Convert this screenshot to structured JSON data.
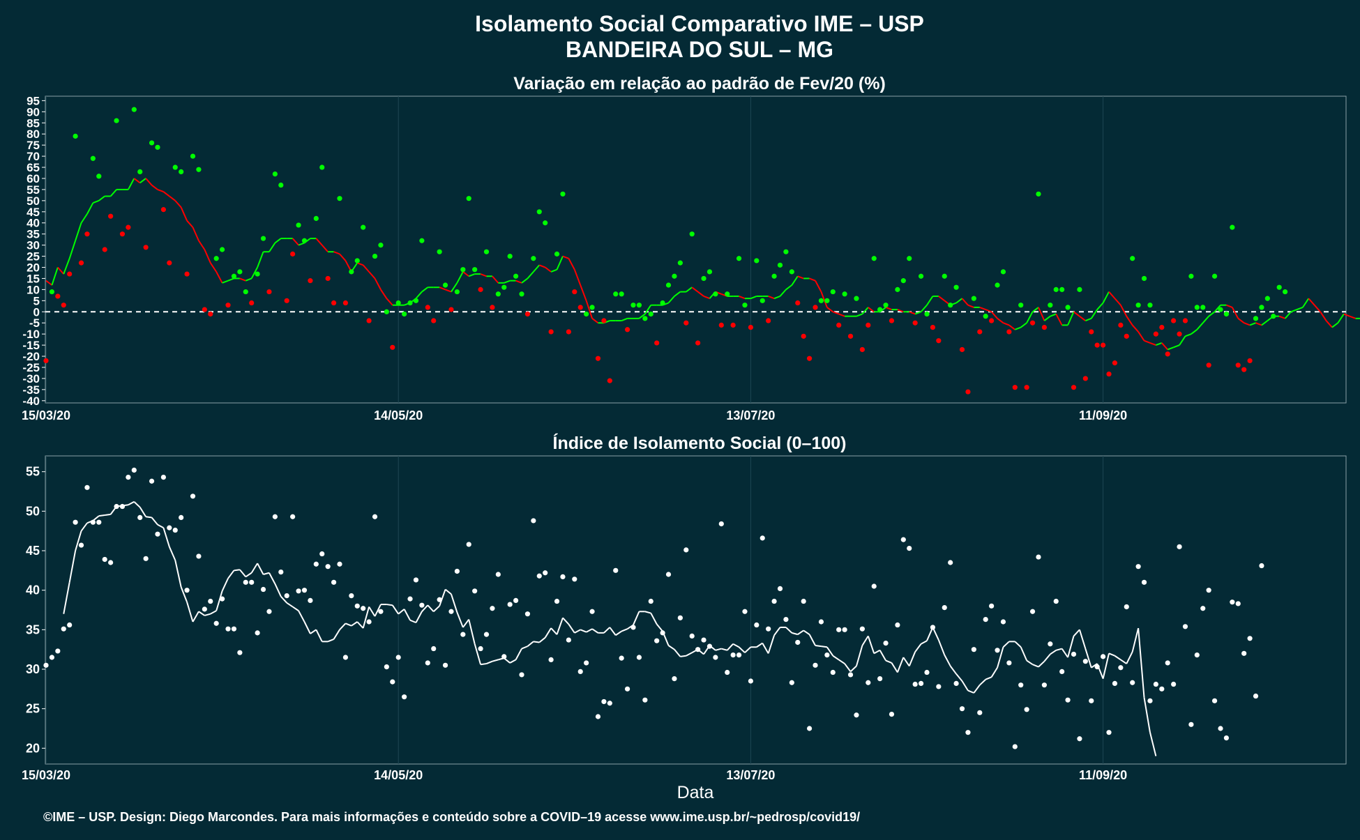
{
  "title_line1": "Isolamento Social Comparativo IME – USP",
  "title_line2": "BANDEIRA DO SUL – MG",
  "xlabel": "Data",
  "footer": "©IME – USP. Design: Diego Marcondes. Para mais informações e conteúdo sobre a COVID–19 acesse www.ime.usp.br/~pedrosp/covid19/",
  "colors": {
    "background": "#042a35",
    "panel": "#042a35",
    "grid": "#1e4753",
    "green": "#00ff00",
    "red": "#ff0000",
    "white": "#ffffff"
  },
  "chart_data": [
    {
      "type": "scatter",
      "title": "Variação em relação ao padrão de Fev/20 (%)",
      "xlabel": "",
      "ylabel": "",
      "x_tick_labels": [
        "15/03/20",
        "14/05/20",
        "13/07/20",
        "11/09/20"
      ],
      "ylim": [
        -41,
        97
      ],
      "yticks": [
        -40,
        -35,
        -30,
        -25,
        -20,
        -15,
        -10,
        -5,
        0,
        5,
        10,
        15,
        20,
        25,
        30,
        35,
        40,
        45,
        50,
        55,
        60,
        65,
        70,
        75,
        80,
        85,
        90,
        95
      ],
      "reference_line": 0,
      "points_note": "day index 0 = 15/03/20",
      "series": [
        {
          "kind": "daily",
          "values": [
            -22,
            9,
            7,
            3,
            17,
            79,
            22,
            35,
            69,
            61,
            28,
            43,
            86,
            35,
            38,
            91,
            63,
            29,
            76,
            74,
            46,
            22,
            65,
            63,
            17,
            70,
            64,
            1,
            -1,
            24,
            28,
            3,
            16,
            18,
            9,
            4,
            17,
            33,
            9,
            62,
            57,
            5,
            26,
            39,
            32,
            14,
            42,
            65,
            15,
            4,
            51,
            4,
            18,
            23,
            38,
            -4,
            25,
            30,
            0,
            -16,
            4,
            -1,
            4,
            5,
            32,
            2,
            -4,
            27,
            12,
            1,
            9,
            19,
            51,
            19,
            10,
            27,
            2,
            8,
            11,
            25,
            16,
            8,
            -1,
            24,
            45,
            40,
            -9,
            26,
            53,
            -9,
            9,
            2,
            -1,
            2,
            -21,
            -4,
            -31,
            8,
            8,
            -8,
            3,
            3,
            -3,
            -1,
            -14,
            4,
            12,
            16,
            22,
            -5,
            35,
            -14,
            15,
            18,
            8,
            -6,
            8,
            -6,
            24,
            3,
            -7,
            23,
            5,
            -4,
            16,
            21,
            27,
            18,
            4,
            -11,
            -21,
            2,
            5,
            5,
            9,
            -6,
            8,
            -11,
            6,
            -17,
            -6,
            24,
            1,
            3,
            -4,
            10,
            14,
            24,
            -5,
            16,
            -1,
            -7,
            -13,
            16,
            3,
            11,
            -17,
            -36,
            6,
            -9,
            -2,
            -4,
            12,
            18,
            -9,
            -34,
            3,
            -34,
            -5,
            53,
            -7,
            3,
            10,
            10,
            2,
            -34,
            10,
            -30,
            -9,
            -15,
            -15,
            -28,
            -23,
            -6,
            -11,
            24,
            3,
            15,
            3,
            -10,
            -7,
            -19,
            -4,
            -10,
            -4,
            16,
            2,
            2,
            -24,
            16,
            1,
            -1,
            38,
            -24,
            -26,
            -22,
            -3,
            2,
            6,
            -2,
            11,
            9
          ],
          "labels_shown_as_marks": true
        },
        {
          "kind": "moving_average",
          "start": 0,
          "values": [
            14,
            12,
            20,
            17,
            24,
            32,
            40,
            44,
            49,
            50,
            52,
            52,
            55,
            55,
            55,
            60,
            58,
            60,
            57,
            55,
            54,
            52,
            50,
            47,
            41,
            38,
            32,
            28,
            22,
            18,
            13,
            14,
            15,
            15,
            14,
            15,
            20,
            27,
            27,
            31,
            33,
            33,
            33,
            30,
            31,
            33,
            33,
            30,
            27,
            27,
            26,
            23,
            18,
            22,
            21,
            18,
            15,
            10,
            6,
            3,
            3,
            3,
            4,
            6,
            9,
            11,
            11,
            11,
            10,
            9,
            13,
            18,
            16,
            17,
            17,
            16,
            16,
            13,
            13,
            14,
            14,
            13,
            15,
            18,
            21,
            20,
            18,
            19,
            25,
            24,
            19,
            12,
            5,
            -3,
            -5,
            -5,
            -4,
            -4,
            -4,
            -3,
            -3,
            -3,
            -1,
            3,
            3,
            3,
            4,
            7,
            9,
            9,
            11,
            9,
            7,
            6,
            9,
            8,
            7,
            7,
            7,
            6,
            6,
            7,
            7,
            7,
            6,
            7,
            10,
            12,
            16,
            15,
            15,
            14,
            9,
            2,
            0,
            -1,
            -2,
            -2,
            -2,
            -1,
            2,
            0,
            0,
            2,
            1,
            1,
            0,
            0,
            -1,
            0,
            3,
            7,
            7,
            5,
            3,
            4,
            6,
            3,
            2,
            2,
            1,
            0,
            -3,
            -5,
            -6,
            -8,
            -7,
            -5,
            0,
            2,
            -4,
            -2,
            -1,
            -6,
            -6,
            0,
            -2,
            -4,
            -3,
            1,
            4,
            9,
            6,
            3,
            -2,
            -6,
            -9,
            -13,
            -14,
            -15,
            -14,
            -17,
            -16,
            -15,
            -11,
            -10,
            -8,
            -5,
            -2,
            0,
            3,
            3,
            2,
            -3,
            -5,
            -6,
            -5,
            -6,
            -4,
            -2,
            -2,
            -3,
            0,
            1,
            2,
            6,
            3,
            0,
            -4,
            -7,
            -5,
            -1,
            -2,
            -3,
            -3,
            2,
            6
          ]
        }
      ]
    },
    {
      "type": "scatter",
      "title": "Índice de Isolamento Social (0–100)",
      "xlabel": "Data",
      "ylabel": "",
      "x_tick_labels": [
        "15/03/20",
        "14/05/20",
        "13/07/20",
        "11/09/20"
      ],
      "ylim": [
        18,
        57
      ],
      "yticks": [
        20,
        25,
        30,
        35,
        40,
        45,
        50,
        55
      ],
      "series": [
        {
          "kind": "daily",
          "values": [
            30.5,
            31.5,
            32.3,
            35.1,
            35.6,
            48.6,
            45.7,
            53,
            48.6,
            48.6,
            43.9,
            43.5,
            50.6,
            50.6,
            54.3,
            55.2,
            49.2,
            44,
            53.8,
            47.1,
            54.3,
            47.9,
            47.6,
            49.2,
            40,
            51.9,
            44.3,
            37.6,
            38.6,
            35.8,
            38.9,
            35.1,
            35.1,
            32.1,
            41,
            41,
            34.6,
            40.1,
            37.3,
            49.3,
            42.3,
            39.3,
            49.3,
            39.9,
            40,
            38.7,
            43.3,
            44.6,
            43,
            41,
            43.3,
            31.5,
            39.3,
            38,
            37.7,
            36,
            49.3,
            37.3,
            30.3,
            28.4,
            31.5,
            26.5,
            38.9,
            41.3,
            38.1,
            30.8,
            32.6,
            38.8,
            30.5,
            37.3,
            42.4,
            34.4,
            45.8,
            39.9,
            32.6,
            34.4,
            37.7,
            42,
            31.6,
            38.2,
            38.7,
            29.3,
            37,
            48.8,
            41.8,
            42.2,
            31.2,
            38.6,
            41.7,
            33.7,
            41.4,
            29.7,
            30.8,
            37.3,
            24,
            25.9,
            25.7,
            42.5,
            31.4,
            27.5,
            35.3,
            31.5,
            26.1,
            38.6,
            33.6,
            34.6,
            42,
            28.8,
            36.5,
            45.1,
            34.2,
            32.5,
            33.7,
            32.9,
            31.5,
            48.4,
            29.6,
            31.8,
            31.8,
            37.3,
            28.5,
            35.6,
            46.6,
            35.1,
            38.6,
            40.2,
            36.3,
            28.3,
            33.4,
            38.6,
            22.5,
            30.5,
            36,
            31.8,
            29.6,
            35,
            35,
            29.3,
            24.2,
            35.1,
            28.3,
            40.5,
            28.8,
            33.3,
            24.3,
            35.6,
            46.4,
            45.3,
            28.1,
            28.2,
            29.6,
            35.3,
            27.8,
            37.8,
            43.5,
            28.2,
            25,
            22,
            32.5,
            24.5,
            36.3,
            38,
            32.4,
            36,
            30.8,
            20.2,
            28,
            24.9,
            37.3,
            44.2,
            28,
            33.2,
            38.6,
            29.7,
            26.1,
            31.9,
            21.2,
            31,
            26,
            30.3,
            31.6,
            22,
            28.2,
            30.2,
            37.9,
            28.3,
            43,
            41,
            26,
            28.1,
            27.5,
            30.8,
            28.1,
            45.5,
            35.4,
            23,
            31.8,
            37.7,
            40,
            26,
            22.5,
            21.3,
            38.5,
            38.3,
            32,
            33.9,
            26.6,
            43.1
          ]
        },
        {
          "kind": "moving_average",
          "start": 3,
          "values": [
            37,
            41,
            45,
            47.5,
            48.5,
            48.8,
            49.4,
            49.5,
            49.6,
            50.6,
            50.7,
            50.8,
            51.2,
            50.5,
            49.3,
            49.2,
            48.3,
            47.9,
            45.5,
            43.8,
            40.4,
            38.5,
            36,
            37.3,
            36.8,
            37,
            37.4,
            39.9,
            41.5,
            42.5,
            42.6,
            41.7,
            42.2,
            43.4,
            42,
            42.2,
            40.8,
            39.2,
            38.4,
            37.9,
            37.4,
            36,
            34.5,
            35,
            33.5,
            33.5,
            33.8,
            35,
            35.8,
            35.5,
            36,
            35.2,
            37.9,
            36.7,
            38.2,
            38.2,
            38.1,
            37,
            37.6,
            36.2,
            35.9,
            37.3,
            38.1,
            37.3,
            38,
            40.1,
            39.5,
            37.2,
            35.3,
            36.3,
            33.2,
            30.6,
            30.7,
            31,
            31.2,
            31.4,
            30.8,
            31.2,
            32.6,
            32.9,
            33.5,
            33.4,
            34,
            35.2,
            34.4,
            36.5,
            35.7,
            34.6,
            35,
            34.7,
            35.1,
            34.6,
            34.6,
            35.3,
            34.3,
            34.8,
            35.1,
            35.6,
            37.3,
            37.3,
            37.1,
            35.7,
            34.8,
            33,
            32.5,
            31.6,
            31.7,
            32.1,
            32.5,
            31.9,
            33,
            32.4,
            32.6,
            32.4,
            33.2,
            32.8,
            32.1,
            32.8,
            32.8,
            33.3,
            32,
            34.3,
            35.3,
            35.3,
            34.6,
            34.4,
            34.9,
            34.4,
            33,
            32.9,
            32.8,
            31.7,
            31.2,
            30.7,
            29.7,
            30.4,
            33,
            34.2,
            32,
            32.4,
            31.1,
            30.8,
            29.6,
            31.5,
            30.4,
            32.2,
            33.2,
            33.6,
            35.3,
            33.7,
            31.8,
            30.4,
            29.4,
            28.5,
            27.3,
            27,
            28,
            28.7,
            29,
            30.2,
            32.8,
            33.5,
            33.5,
            32.8,
            31.1,
            30.6,
            30.3,
            31,
            31.9,
            32.4,
            32.6,
            31.5,
            34.2,
            35,
            32.6,
            30.2,
            30.7,
            28.8,
            32,
            31.7,
            31.2,
            30.7,
            32.2,
            35.2,
            26.4,
            22,
            19
          ]
        }
      ]
    }
  ]
}
